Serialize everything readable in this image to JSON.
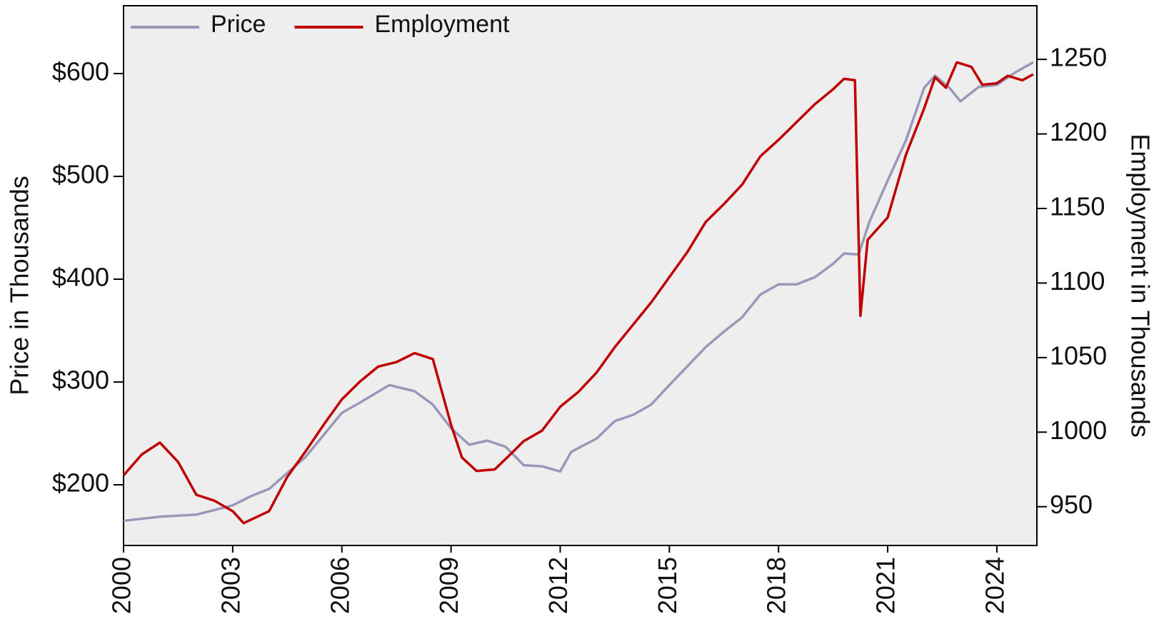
{
  "chart_data": {
    "type": "line",
    "y_label": "Price in Thousands",
    "y2_label": "Employment in Thousands",
    "xlim": [
      2000,
      2025.1
    ],
    "xticks": [
      2000,
      2003,
      2006,
      2009,
      2012,
      2015,
      2018,
      2021,
      2024
    ],
    "ylim": [
      141,
      666
    ],
    "yticks": [
      {
        "value": 200,
        "label": "$200"
      },
      {
        "value": 300,
        "label": "$300"
      },
      {
        "value": 400,
        "label": "$400"
      },
      {
        "value": 500,
        "label": "$500"
      },
      {
        "value": 600,
        "label": "$600"
      }
    ],
    "y2lim": [
      924,
      1286
    ],
    "y2ticks": [
      950,
      1000,
      1050,
      1100,
      1150,
      1200,
      1250
    ],
    "legend": "upper left",
    "background": "#eeeeee",
    "series": [
      {
        "name": "Price",
        "color": "#9a98b8",
        "axis": "y",
        "x": [
          2000,
          2001,
          2002,
          2003,
          2003.5,
          2004,
          2005,
          2006,
          2006.5,
          2007.3,
          2008,
          2008.5,
          2009,
          2009.5,
          2010,
          2010.5,
          2011,
          2011.5,
          2012,
          2012.3,
          2013,
          2013.5,
          2014,
          2014.5,
          2015,
          2016,
          2016.5,
          2017,
          2017.5,
          2018,
          2018.5,
          2019,
          2019.5,
          2019.8,
          2020.2,
          2020.5,
          2021,
          2021.5,
          2022,
          2022.3,
          2022.7,
          2023,
          2023.5,
          2024,
          2024.5,
          2025
        ],
        "values": [
          165,
          169,
          171,
          180,
          189,
          196,
          227,
          270,
          280,
          297,
          291,
          278,
          255,
          239,
          243,
          237,
          219,
          218,
          213,
          232,
          245,
          262,
          268,
          278,
          297,
          334,
          349,
          363,
          385,
          395,
          395,
          402,
          415,
          425,
          424,
          456,
          496,
          535,
          586,
          598,
          586,
          573,
          587,
          589,
          601,
          611
        ]
      },
      {
        "name": "Employment",
        "color": "#c00000",
        "axis": "y2",
        "x": [
          2000,
          2000.5,
          2001,
          2001.5,
          2002,
          2002.5,
          2003,
          2003.3,
          2004,
          2004.5,
          2005,
          2005.5,
          2006,
          2006.5,
          2007,
          2007.5,
          2008,
          2008.5,
          2009,
          2009.3,
          2009.7,
          2010.2,
          2010.5,
          2011,
          2011.5,
          2012,
          2012.5,
          2013,
          2013.5,
          2014,
          2014.5,
          2015,
          2015.5,
          2016,
          2016.5,
          2017,
          2017.5,
          2018,
          2018.5,
          2019,
          2019.5,
          2019.8,
          2020.1,
          2020.25,
          2020.45,
          2021,
          2021.5,
          2022,
          2022.3,
          2022.6,
          2022.9,
          2023.3,
          2023.6,
          2024,
          2024.3,
          2024.7,
          2025
        ],
        "values": [
          971,
          985,
          993,
          980,
          958,
          954,
          947,
          939,
          947,
          970,
          987,
          1005,
          1022,
          1034,
          1044,
          1047,
          1053,
          1049,
          1005,
          983,
          974,
          975,
          982,
          994,
          1001,
          1017,
          1027,
          1040,
          1057,
          1072,
          1087,
          1104,
          1121,
          1141,
          1153,
          1166,
          1185,
          1196,
          1208,
          1220,
          1230,
          1237,
          1236,
          1078,
          1129,
          1144,
          1186,
          1217,
          1238,
          1231,
          1248,
          1245,
          1233,
          1234,
          1239,
          1236,
          1240
        ]
      }
    ]
  }
}
